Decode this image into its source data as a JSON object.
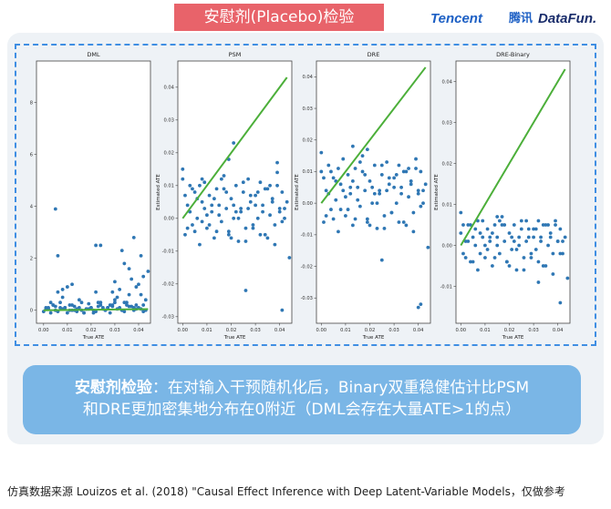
{
  "slide": {
    "title": "安慰剂(Placebo)检验",
    "logos": {
      "tencent": "Tencent",
      "tencent_cn": "腾讯",
      "datafun": "DataFun."
    },
    "callout": {
      "highlight": "安慰剂检验",
      "line1_rest": "：在对输入干预随机化后，Binary双重稳健估计比PSM",
      "line2": "和DRE更加密集地分布在0附近（DML会存在大量ATE>1的点）"
    },
    "footer": "仿真数据来源 Louizos et al. (2018) \"Causal Effect Inference with Deep Latent-Variable Models，仅做参考"
  },
  "chart_data": [
    {
      "type": "scatter",
      "title": "DML",
      "xlabel": "True ATE",
      "ylabel": "",
      "xlim": [
        -0.003,
        0.045
      ],
      "ylim": [
        -0.5,
        9.6
      ],
      "xticks": [
        "0.00",
        "0.01",
        "0.02",
        "0.03",
        "0.04"
      ],
      "xtick_values": [
        0,
        0.01,
        0.02,
        0.03,
        0.04
      ],
      "yticks": [
        "0",
        "2",
        "4",
        "6",
        "8"
      ],
      "ytick_values": [
        0,
        2,
        4,
        6,
        8
      ],
      "reference_line": {
        "x": [
          0,
          0.044
        ],
        "y": [
          0,
          0.044
        ]
      },
      "x": [
        0.0,
        0.001,
        0.002,
        0.003,
        0.004,
        0.005,
        0.005,
        0.006,
        0.007,
        0.008,
        0.009,
        0.01,
        0.011,
        0.012,
        0.013,
        0.014,
        0.015,
        0.016,
        0.017,
        0.018,
        0.019,
        0.02,
        0.021,
        0.022,
        0.023,
        0.024,
        0.025,
        0.026,
        0.027,
        0.028,
        0.029,
        0.03,
        0.031,
        0.032,
        0.033,
        0.034,
        0.035,
        0.036,
        0.037,
        0.038,
        0.039,
        0.04,
        0.041,
        0.042,
        0.043,
        0.003,
        0.006,
        0.009,
        0.012,
        0.015,
        0.018,
        0.021,
        0.024,
        0.027,
        0.03,
        0.033,
        0.036,
        0.039,
        0.042,
        0.002,
        0.005,
        0.008,
        0.011,
        0.014,
        0.017,
        0.02,
        0.023,
        0.026,
        0.029,
        0.032,
        0.035,
        0.038,
        0.041,
        0.044,
        0.001,
        0.004,
        0.007,
        0.01,
        0.013,
        0.016,
        0.019,
        0.022,
        0.025,
        0.028,
        0.031,
        0.034,
        0.037,
        0.04,
        0.043,
        0.034,
        0.036,
        0.038,
        0.041,
        0.042,
        0.039,
        0.033,
        0.03,
        0.029,
        0.008,
        0.012,
        0.022,
        0.024,
        0.005,
        0.006
      ],
      "y": [
        -0.05,
        0.1,
        0.05,
        -0.1,
        0.2,
        0.0,
        0.15,
        -0.05,
        0.3,
        0.05,
        0.1,
        -0.1,
        0.0,
        0.2,
        0.15,
        -0.05,
        0.1,
        0.0,
        -0.1,
        0.05,
        0.25,
        0.1,
        0.0,
        -0.05,
        0.15,
        0.3,
        0.05,
        0.0,
        0.1,
        -0.1,
        0.2,
        0.4,
        0.05,
        0.1,
        0.0,
        -0.05,
        0.3,
        0.6,
        0.15,
        0.0,
        0.2,
        0.1,
        0.05,
        -0.05,
        0.0,
        0.3,
        0.7,
        0.1,
        0.0,
        0.4,
        0.05,
        -0.1,
        0.2,
        0.1,
        0.3,
        0.0,
        0.15,
        0.05,
        0.2,
        0.1,
        0.0,
        0.5,
        0.2,
        0.05,
        -0.1,
        0.1,
        0.3,
        0.0,
        0.15,
        0.8,
        0.2,
        0.1,
        0.6,
        1.5,
        0.05,
        0.2,
        0.1,
        0.9,
        0.0,
        0.3,
        0.05,
        0.7,
        0.1,
        0.2,
        0.5,
        0.3,
        1.2,
        1.0,
        0.4,
        1.8,
        1.6,
        2.8,
        2.1,
        1.3,
        0.9,
        2.3,
        1.1,
        0.7,
        0.8,
        1.0,
        2.5,
        2.5,
        3.9,
        2.1
      ]
    },
    {
      "type": "scatter",
      "title": "PSM",
      "xlabel": "True ATE",
      "ylabel": "Estimated ATE",
      "xlim": [
        -0.002,
        0.045
      ],
      "ylim": [
        -0.032,
        0.048
      ],
      "xticks": [
        "0.00",
        "0.01",
        "0.02",
        "0.03",
        "0.04"
      ],
      "xtick_values": [
        0,
        0.01,
        0.02,
        0.03,
        0.04
      ],
      "yticks": [
        "-0.03",
        "-0.02",
        "-0.01",
        "0.00",
        "0.01",
        "0.02",
        "0.03",
        "0.04"
      ],
      "ytick_values": [
        -0.03,
        -0.02,
        -0.01,
        0,
        0.01,
        0.02,
        0.03,
        0.04
      ],
      "reference_line": {
        "x": [
          0,
          0.043
        ],
        "y": [
          0,
          0.043
        ]
      },
      "x": [
        0.0,
        0.001,
        0.002,
        0.003,
        0.004,
        0.005,
        0.006,
        0.007,
        0.008,
        0.009,
        0.01,
        0.011,
        0.012,
        0.013,
        0.014,
        0.015,
        0.016,
        0.017,
        0.018,
        0.019,
        0.02,
        0.021,
        0.022,
        0.023,
        0.024,
        0.025,
        0.026,
        0.027,
        0.028,
        0.029,
        0.03,
        0.031,
        0.032,
        0.033,
        0.034,
        0.035,
        0.036,
        0.037,
        0.038,
        0.039,
        0.04,
        0.041,
        0.042,
        0.043,
        0.001,
        0.003,
        0.005,
        0.007,
        0.009,
        0.011,
        0.013,
        0.015,
        0.017,
        0.019,
        0.021,
        0.023,
        0.025,
        0.027,
        0.029,
        0.031,
        0.033,
        0.035,
        0.037,
        0.039,
        0.041,
        0.002,
        0.006,
        0.01,
        0.014,
        0.018,
        0.022,
        0.026,
        0.03,
        0.034,
        0.038,
        0.042,
        0.004,
        0.008,
        0.012,
        0.016,
        0.02,
        0.024,
        0.028,
        0.032,
        0.036,
        0.04,
        0.044,
        0.0,
        0.041,
        0.039,
        0.026,
        0.021,
        0.019,
        0.008
      ],
      "y": [
        0.012,
        -0.005,
        0.004,
        0.01,
        -0.002,
        0.008,
        0.0,
        -0.008,
        0.005,
        0.011,
        -0.003,
        0.007,
        0.002,
        -0.006,
        0.009,
        0.004,
        -0.001,
        0.013,
        0.003,
        -0.004,
        0.006,
        0.0,
        0.01,
        -0.007,
        0.002,
        0.008,
        -0.003,
        0.012,
        0.005,
        -0.002,
        0.007,
        0.0,
        0.011,
        0.004,
        -0.005,
        0.009,
        0.001,
        0.006,
        -0.008,
        0.014,
        0.003,
        0.008,
        0.0,
        0.005,
        0.007,
        0.002,
        -0.004,
        0.01,
        0.003,
        -0.002,
        0.006,
        0.001,
        0.009,
        -0.005,
        0.004,
        0.0,
        0.011,
        0.003,
        -0.003,
        0.008,
        0.002,
        -0.006,
        0.005,
        0.01,
        -0.001,
        -0.003,
        0.006,
        0.001,
        -0.004,
        0.008,
        0.002,
        -0.007,
        0.004,
        0.009,
        -0.002,
        0.003,
        0.009,
        -0.001,
        0.004,
        0.012,
        -0.006,
        0.003,
        0.007,
        -0.005,
        0.01,
        0.002,
        -0.012,
        0.015,
        -0.028,
        0.017,
        -0.022,
        0.023,
        0.018,
        0.012
      ]
    },
    {
      "type": "scatter",
      "title": "DRE",
      "xlabel": "True ATE",
      "ylabel": "Estimated ATE",
      "xlim": [
        -0.002,
        0.045
      ],
      "ylim": [
        -0.038,
        0.045
      ],
      "xticks": [
        "0.00",
        "0.01",
        "0.02",
        "0.03",
        "0.04"
      ],
      "xtick_values": [
        0,
        0.01,
        0.02,
        0.03,
        0.04
      ],
      "yticks": [
        "-0.03",
        "-0.02",
        "-0.01",
        "0.00",
        "0.01",
        "0.02",
        "0.03",
        "0.04"
      ],
      "ytick_values": [
        -0.03,
        -0.02,
        -0.01,
        0,
        0.01,
        0.02,
        0.03,
        0.04
      ],
      "reference_line": {
        "x": [
          0,
          0.043
        ],
        "y": [
          0,
          0.043
        ]
      },
      "x": [
        0.0,
        0.001,
        0.002,
        0.003,
        0.004,
        0.005,
        0.006,
        0.007,
        0.008,
        0.009,
        0.01,
        0.011,
        0.012,
        0.013,
        0.014,
        0.015,
        0.016,
        0.017,
        0.018,
        0.019,
        0.02,
        0.021,
        0.022,
        0.023,
        0.024,
        0.025,
        0.026,
        0.027,
        0.028,
        0.029,
        0.03,
        0.031,
        0.032,
        0.033,
        0.034,
        0.035,
        0.036,
        0.037,
        0.038,
        0.039,
        0.04,
        0.041,
        0.042,
        0.043,
        0.001,
        0.003,
        0.005,
        0.007,
        0.009,
        0.011,
        0.013,
        0.015,
        0.017,
        0.019,
        0.021,
        0.023,
        0.025,
        0.027,
        0.029,
        0.031,
        0.033,
        0.035,
        0.037,
        0.039,
        0.041,
        0.002,
        0.006,
        0.01,
        0.014,
        0.018,
        0.022,
        0.026,
        0.03,
        0.034,
        0.038,
        0.042,
        0.004,
        0.008,
        0.012,
        0.016,
        0.02,
        0.024,
        0.028,
        0.032,
        0.036,
        0.04,
        0.044,
        0.0,
        0.041,
        0.025,
        0.04,
        0.013,
        0.019
      ],
      "y": [
        0.01,
        -0.006,
        0.004,
        0.012,
        -0.002,
        0.008,
        0.001,
        -0.009,
        0.006,
        0.014,
        -0.004,
        0.009,
        0.003,
        -0.007,
        0.011,
        0.005,
        -0.001,
        0.015,
        0.004,
        -0.005,
        0.007,
        0.0,
        0.012,
        -0.008,
        0.003,
        0.009,
        -0.004,
        0.013,
        0.006,
        -0.003,
        0.008,
        0.0,
        0.012,
        0.005,
        -0.006,
        0.01,
        0.002,
        0.007,
        -0.009,
        0.014,
        0.004,
        0.01,
        0.0,
        0.006,
        0.008,
        0.003,
        -0.005,
        0.011,
        0.004,
        -0.002,
        0.007,
        0.001,
        0.01,
        -0.006,
        0.005,
        0.0,
        0.012,
        0.004,
        -0.003,
        0.009,
        0.003,
        -0.007,
        0.006,
        0.011,
        -0.001,
        -0.004,
        0.007,
        0.002,
        -0.005,
        0.009,
        0.003,
        -0.008,
        0.005,
        0.01,
        -0.003,
        0.004,
        0.01,
        -0.002,
        0.005,
        0.013,
        -0.007,
        0.004,
        0.008,
        -0.006,
        0.011,
        0.003,
        -0.014,
        0.016,
        -0.032,
        -0.018,
        -0.033,
        0.018,
        0.017
      ]
    },
    {
      "type": "scatter",
      "title": "DRE-Binary",
      "xlabel": "True ATE",
      "ylabel": "Estimated ATE",
      "xlim": [
        -0.002,
        0.045
      ],
      "ylim": [
        -0.019,
        0.045
      ],
      "xticks": [
        "0.00",
        "0.01",
        "0.02",
        "0.03",
        "0.04"
      ],
      "xtick_values": [
        0,
        0.01,
        0.02,
        0.03,
        0.04
      ],
      "yticks": [
        "-0.01",
        "0.00",
        "0.01",
        "0.02",
        "0.03",
        "0.04"
      ],
      "ytick_values": [
        -0.01,
        0,
        0.01,
        0.02,
        0.03,
        0.04
      ],
      "reference_line": {
        "x": [
          0,
          0.043
        ],
        "y": [
          0,
          0.043
        ]
      },
      "x": [
        0.0,
        0.001,
        0.002,
        0.003,
        0.004,
        0.005,
        0.006,
        0.007,
        0.008,
        0.009,
        0.01,
        0.011,
        0.012,
        0.013,
        0.014,
        0.015,
        0.016,
        0.017,
        0.018,
        0.019,
        0.02,
        0.021,
        0.022,
        0.023,
        0.024,
        0.025,
        0.026,
        0.027,
        0.028,
        0.029,
        0.03,
        0.031,
        0.032,
        0.033,
        0.034,
        0.035,
        0.036,
        0.037,
        0.038,
        0.039,
        0.04,
        0.041,
        0.042,
        0.043,
        0.001,
        0.003,
        0.005,
        0.007,
        0.009,
        0.011,
        0.013,
        0.015,
        0.017,
        0.019,
        0.021,
        0.023,
        0.025,
        0.027,
        0.029,
        0.031,
        0.033,
        0.035,
        0.037,
        0.039,
        0.041,
        0.002,
        0.006,
        0.01,
        0.014,
        0.018,
        0.022,
        0.026,
        0.03,
        0.034,
        0.038,
        0.042,
        0.004,
        0.008,
        0.012,
        0.016,
        0.02,
        0.024,
        0.028,
        0.032,
        0.036,
        0.04,
        0.044,
        0.041,
        0.032,
        0.0,
        0.015
      ],
      "y": [
        0.003,
        -0.002,
        0.001,
        0.005,
        -0.004,
        0.002,
        0.0,
        -0.006,
        0.003,
        0.006,
        -0.003,
        0.004,
        0.001,
        -0.005,
        0.005,
        0.002,
        -0.002,
        0.007,
        0.001,
        -0.004,
        0.003,
        -0.001,
        0.005,
        -0.006,
        0.0,
        0.004,
        -0.003,
        0.006,
        0.002,
        -0.002,
        0.004,
        -0.001,
        0.006,
        0.002,
        -0.005,
        0.005,
        0.0,
        0.003,
        -0.007,
        0.006,
        0.001,
        0.004,
        -0.002,
        0.002,
        0.005,
        0.001,
        -0.004,
        0.006,
        0.002,
        -0.001,
        0.003,
        0.0,
        0.005,
        -0.004,
        0.002,
        -0.001,
        0.006,
        0.001,
        -0.003,
        0.004,
        0.001,
        -0.005,
        0.002,
        0.005,
        -0.002,
        -0.003,
        0.004,
        0.0,
        -0.003,
        0.005,
        0.001,
        -0.006,
        0.002,
        0.005,
        -0.002,
        0.001,
        0.005,
        -0.002,
        0.002,
        0.006,
        -0.005,
        0.002,
        0.004,
        -0.004,
        0.005,
        0.001,
        -0.008,
        -0.014,
        -0.009,
        0.008,
        0.007
      ]
    }
  ]
}
